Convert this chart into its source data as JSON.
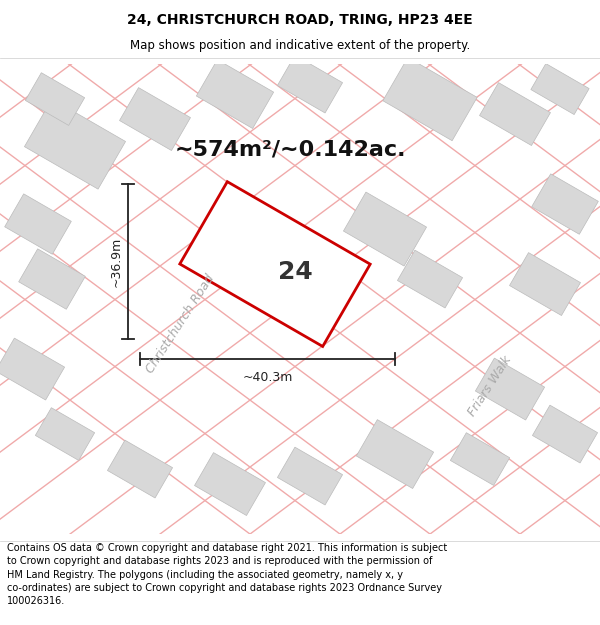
{
  "title": "24, CHRISTCHURCH ROAD, TRING, HP23 4EE",
  "subtitle": "Map shows position and indicative extent of the property.",
  "footer": "Contains OS data © Crown copyright and database right 2021. This information is subject\nto Crown copyright and database rights 2023 and is reproduced with the permission of\nHM Land Registry. The polygons (including the associated geometry, namely x, y\nco-ordinates) are subject to Crown copyright and database rights 2023 Ordnance Survey\n100026316.",
  "area_text": "~574m²/~0.142ac.",
  "plot_number": "24",
  "dim_width": "~40.3m",
  "dim_height": "~36.9m",
  "road_label1": "Christchurch Road",
  "road_label2": "Friars Walk",
  "building_color": "#d8d8d8",
  "building_edge": "#bbbbbb",
  "road_line_color": "#f0aaaa",
  "plot_edge_color": "#cc0000",
  "dim_color": "#222222",
  "title_fontsize": 10,
  "subtitle_fontsize": 8.5,
  "footer_fontsize": 7,
  "area_fontsize": 16,
  "plot_num_fontsize": 18,
  "dim_fontsize": 9,
  "road_fontsize": 9
}
